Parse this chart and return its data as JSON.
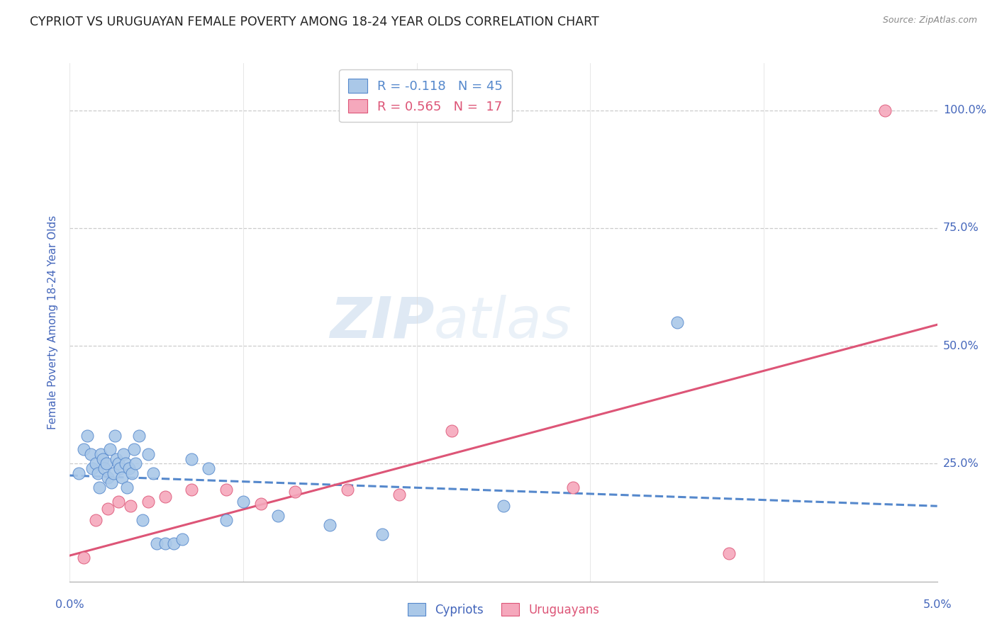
{
  "title": "CYPRIOT VS URUGUAYAN FEMALE POVERTY AMONG 18-24 YEAR OLDS CORRELATION CHART",
  "source": "Source: ZipAtlas.com",
  "ylabel": "Female Poverty Among 18-24 Year Olds",
  "ytick_labels": [
    "25.0%",
    "50.0%",
    "75.0%",
    "100.0%"
  ],
  "ytick_values": [
    0.25,
    0.5,
    0.75,
    1.0
  ],
  "legend_blue": "R = -0.118   N = 45",
  "legend_pink": "R = 0.565   N =  17",
  "legend_label_blue": "Cypriots",
  "legend_label_pink": "Uruguayans",
  "cypriot_color": "#aac8e8",
  "uruguayan_color": "#f5a8bc",
  "trendline_blue_color": "#5588cc",
  "trendline_pink_color": "#dd5577",
  "axis_label_color": "#4466bb",
  "grid_color": "#cccccc",
  "background_color": "#ffffff",
  "watermark_color": "#dde8f0",
  "cypriot_x": [
    0.0005,
    0.0008,
    0.001,
    0.0012,
    0.0013,
    0.0015,
    0.0016,
    0.0017,
    0.0018,
    0.0019,
    0.002,
    0.0021,
    0.0022,
    0.0023,
    0.0024,
    0.0025,
    0.0026,
    0.0027,
    0.0028,
    0.0029,
    0.003,
    0.0031,
    0.0032,
    0.0033,
    0.0034,
    0.0036,
    0.0037,
    0.0038,
    0.004,
    0.0042,
    0.0045,
    0.0048,
    0.005,
    0.0055,
    0.006,
    0.0065,
    0.007,
    0.008,
    0.009,
    0.01,
    0.012,
    0.015,
    0.018,
    0.025,
    0.035
  ],
  "cypriot_y": [
    0.23,
    0.28,
    0.31,
    0.27,
    0.24,
    0.25,
    0.23,
    0.2,
    0.27,
    0.26,
    0.24,
    0.25,
    0.22,
    0.28,
    0.21,
    0.23,
    0.31,
    0.26,
    0.25,
    0.24,
    0.22,
    0.27,
    0.25,
    0.2,
    0.24,
    0.23,
    0.28,
    0.25,
    0.31,
    0.13,
    0.27,
    0.23,
    0.08,
    0.08,
    0.08,
    0.09,
    0.26,
    0.24,
    0.13,
    0.17,
    0.14,
    0.12,
    0.1,
    0.16,
    0.55
  ],
  "uruguayan_x": [
    0.0008,
    0.0015,
    0.0022,
    0.0028,
    0.0035,
    0.0045,
    0.0055,
    0.007,
    0.009,
    0.011,
    0.013,
    0.016,
    0.019,
    0.022,
    0.029,
    0.038,
    0.047
  ],
  "uruguayan_y": [
    0.05,
    0.13,
    0.155,
    0.17,
    0.16,
    0.17,
    0.18,
    0.195,
    0.195,
    0.165,
    0.19,
    0.195,
    0.185,
    0.32,
    0.2,
    0.06,
    1.0
  ],
  "blue_trendline_x": [
    0.0,
    0.05
  ],
  "blue_trendline_y": [
    0.225,
    0.16
  ],
  "pink_trendline_x": [
    0.0,
    0.05
  ],
  "pink_trendline_y": [
    0.055,
    0.545
  ],
  "xlim": [
    0.0,
    0.05
  ],
  "ylim": [
    0.0,
    1.1
  ],
  "xtick_positions": [
    0.0,
    0.01,
    0.02,
    0.03,
    0.04,
    0.05
  ]
}
